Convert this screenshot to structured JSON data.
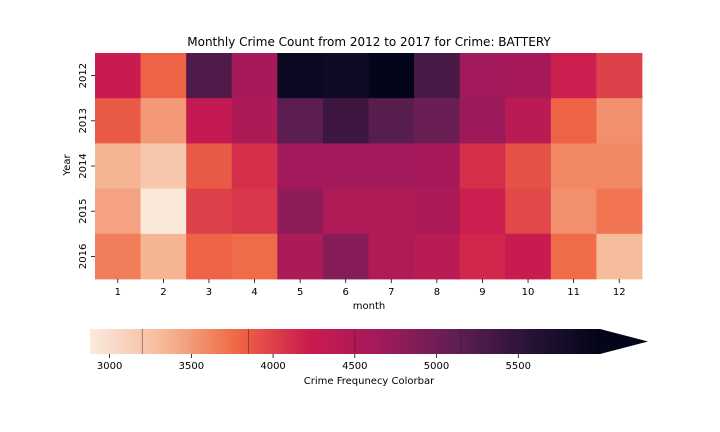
{
  "chart_data": {
    "type": "heatmap",
    "title": "Monthly Crime Count from 2012 to 2017 for Crime: BATTERY",
    "xlabel": "month",
    "ylabel": "Year",
    "x": [
      "1",
      "2",
      "3",
      "4",
      "5",
      "6",
      "7",
      "8",
      "9",
      "10",
      "11",
      "12"
    ],
    "y": [
      "2012",
      "2013",
      "2014",
      "2015",
      "2016"
    ],
    "values": [
      [
        4250,
        3800,
        5250,
        4600,
        5900,
        5850,
        6000,
        5300,
        4650,
        4600,
        4200,
        4000
      ],
      [
        3850,
        3500,
        4300,
        4550,
        5150,
        5400,
        5200,
        5050,
        4700,
        4400,
        3800,
        3550
      ],
      [
        3350,
        3200,
        3850,
        4100,
        4650,
        4650,
        4650,
        4600,
        4100,
        3900,
        3600,
        3600
      ],
      [
        3450,
        2900,
        4000,
        4050,
        4800,
        4500,
        4500,
        4550,
        4200,
        3950,
        3550,
        3700
      ],
      [
        3650,
        3350,
        3800,
        3750,
        4550,
        4850,
        4500,
        4400,
        4150,
        4250,
        3750,
        3300
      ]
    ],
    "colorbar": {
      "label": "Crime Frequnecy Colorbar",
      "ticks": [
        3000,
        3500,
        4000,
        4500,
        5000,
        5500
      ],
      "range": [
        2880,
        6000
      ],
      "boundaries": [
        3200,
        3850,
        4500,
        5150
      ],
      "extend": "max",
      "orientation": "horizontal"
    },
    "colors": [
      "#faeade",
      "#f5b998",
      "#f06844",
      "#cb1b4f",
      "#a11a5b",
      "#611f53",
      "#2b1338",
      "#03051a"
    ]
  }
}
